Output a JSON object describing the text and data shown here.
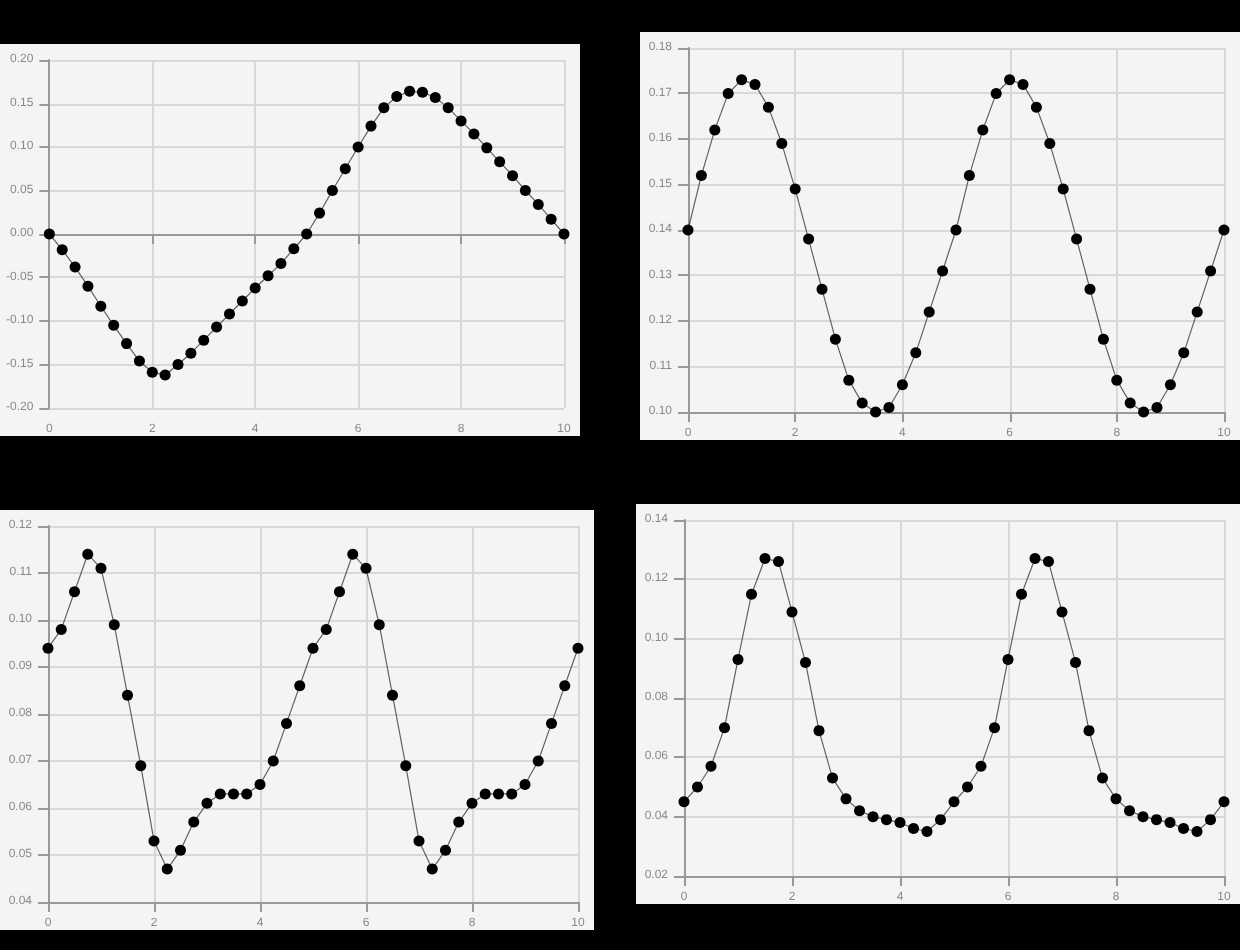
{
  "chart_data": [
    {
      "type": "line",
      "marker": "circle",
      "grid": true,
      "color": "#000000",
      "x": [
        0,
        0.25,
        0.5,
        0.75,
        1,
        1.25,
        1.5,
        1.75,
        2,
        2.25,
        2.5,
        2.75,
        3,
        3.25,
        3.5,
        3.75,
        4,
        4.25,
        4.5,
        4.75,
        5,
        5.25,
        5.5,
        5.75,
        6,
        6.25,
        6.5,
        6.75,
        7,
        7.25,
        7.5,
        7.75,
        8,
        8.25,
        8.5,
        8.75,
        9,
        9.25,
        9.5,
        9.75,
        10
      ],
      "values": [
        0,
        -0.018,
        -0.038,
        -0.06,
        -0.083,
        -0.105,
        -0.126,
        -0.146,
        -0.159,
        -0.162,
        -0.15,
        -0.137,
        -0.122,
        -0.107,
        -0.092,
        -0.077,
        -0.062,
        -0.048,
        -0.034,
        -0.017,
        0,
        0.024,
        0.05,
        0.075,
        0.1,
        0.124,
        0.145,
        0.158,
        0.164,
        0.163,
        0.157,
        0.145,
        0.13,
        0.115,
        0.099,
        0.083,
        0.067,
        0.05,
        0.034,
        0.017,
        0
      ],
      "xlim": [
        0,
        10
      ],
      "xticks": [
        0,
        2,
        4,
        6,
        8,
        10
      ],
      "ylim": [
        -0.2,
        0.2
      ],
      "yticks": [
        {
          "value": -0.2,
          "label": "-0.20"
        },
        {
          "value": -0.15,
          "label": "-0.15"
        },
        {
          "value": -0.1,
          "label": "-0.10"
        },
        {
          "value": -0.05,
          "label": "-0.05"
        },
        {
          "value": 0,
          "label": "0.00"
        },
        {
          "value": 0.05,
          "label": "0.05"
        },
        {
          "value": 0.1,
          "label": "0.10"
        },
        {
          "value": 0.15,
          "label": "0.15"
        },
        {
          "value": 0.2,
          "label": "0.20"
        }
      ]
    },
    {
      "type": "line",
      "marker": "circle",
      "grid": true,
      "color": "#000000",
      "x": [
        0,
        0.25,
        0.5,
        0.75,
        1,
        1.25,
        1.5,
        1.75,
        2,
        2.25,
        2.5,
        2.75,
        3,
        3.25,
        3.5,
        3.75,
        4,
        4.25,
        4.5,
        4.75,
        5,
        5.25,
        5.5,
        5.75,
        6,
        6.25,
        6.5,
        6.75,
        7,
        7.25,
        7.5,
        7.75,
        8,
        8.25,
        8.5,
        8.75,
        9,
        9.25,
        9.5,
        9.75,
        10
      ],
      "values": [
        0.14,
        0.152,
        0.162,
        0.17,
        0.173,
        0.172,
        0.167,
        0.159,
        0.149,
        0.138,
        0.127,
        0.116,
        0.107,
        0.102,
        0.1,
        0.101,
        0.106,
        0.113,
        0.122,
        0.131,
        0.14,
        0.152,
        0.162,
        0.17,
        0.173,
        0.172,
        0.167,
        0.159,
        0.149,
        0.138,
        0.127,
        0.116,
        0.107,
        0.102,
        0.1,
        0.101,
        0.106,
        0.113,
        0.122,
        0.131,
        0.14
      ],
      "xlim": [
        0,
        10
      ],
      "xticks": [
        0,
        2,
        4,
        6,
        8,
        10
      ],
      "ylim": [
        0.1,
        0.18
      ],
      "yticks": [
        {
          "value": 0.1,
          "label": "0.10"
        },
        0.11,
        0.12,
        0.13,
        0.14,
        0.15,
        0.16,
        0.17,
        0.18
      ]
    },
    {
      "type": "line",
      "marker": "circle",
      "grid": true,
      "color": "#000000",
      "x": [
        0,
        0.25,
        0.5,
        0.75,
        1,
        1.25,
        1.5,
        1.75,
        2,
        2.25,
        2.5,
        2.75,
        3,
        3.25,
        3.5,
        3.75,
        4,
        4.25,
        4.5,
        4.75,
        5,
        5.25,
        5.5,
        5.75,
        6,
        6.25,
        6.5,
        6.75,
        7,
        7.25,
        7.5,
        7.75,
        8,
        8.25,
        8.5,
        8.75,
        9,
        9.25,
        9.5,
        9.75,
        10
      ],
      "values": [
        0.094,
        0.098,
        0.106,
        0.114,
        0.111,
        0.099,
        0.084,
        0.069,
        0.053,
        0.047,
        0.051,
        0.057,
        0.061,
        0.063,
        0.063,
        0.063,
        0.065,
        0.07,
        0.078,
        0.086,
        0.094,
        0.098,
        0.106,
        0.114,
        0.111,
        0.099,
        0.084,
        0.069,
        0.053,
        0.047,
        0.051,
        0.057,
        0.061,
        0.063,
        0.063,
        0.063,
        0.065,
        0.07,
        0.078,
        0.086,
        0.094
      ],
      "xlim": [
        0,
        10
      ],
      "xticks": [
        0,
        2,
        4,
        6,
        8,
        10
      ],
      "ylim": [
        0.04,
        0.12
      ],
      "yticks": [
        0.04,
        0.05,
        0.06,
        0.07,
        0.08,
        0.09,
        {
          "value": 0.1,
          "label": "0.10"
        },
        0.11,
        0.12
      ]
    },
    {
      "type": "line",
      "marker": "circle",
      "grid": true,
      "color": "#000000",
      "x": [
        0,
        0.25,
        0.5,
        0.75,
        1,
        1.25,
        1.5,
        1.75,
        2,
        2.25,
        2.5,
        2.75,
        3,
        3.25,
        3.5,
        3.75,
        4,
        4.25,
        4.5,
        4.75,
        5,
        5.25,
        5.5,
        5.75,
        6,
        6.25,
        6.5,
        6.75,
        7,
        7.25,
        7.5,
        7.75,
        8,
        8.25,
        8.5,
        8.75,
        9,
        9.25,
        9.5,
        9.75,
        10
      ],
      "values": [
        0.045,
        0.05,
        0.057,
        0.07,
        0.093,
        0.115,
        0.127,
        0.126,
        0.109,
        0.092,
        0.069,
        0.053,
        0.046,
        0.042,
        0.04,
        0.039,
        0.038,
        0.036,
        0.035,
        0.039,
        0.045,
        0.05,
        0.057,
        0.07,
        0.093,
        0.115,
        0.127,
        0.126,
        0.109,
        0.092,
        0.069,
        0.053,
        0.046,
        0.042,
        0.04,
        0.039,
        0.038,
        0.036,
        0.035,
        0.039,
        0.045
      ],
      "xlim": [
        0,
        10
      ],
      "xticks": [
        0,
        2,
        4,
        6,
        8,
        10
      ],
      "ylim": [
        0.02,
        0.14
      ],
      "yticks": [
        0.02,
        0.04,
        0.06,
        0.08,
        {
          "value": 0.1,
          "label": "0.10"
        },
        0.12,
        0.14
      ]
    }
  ]
}
